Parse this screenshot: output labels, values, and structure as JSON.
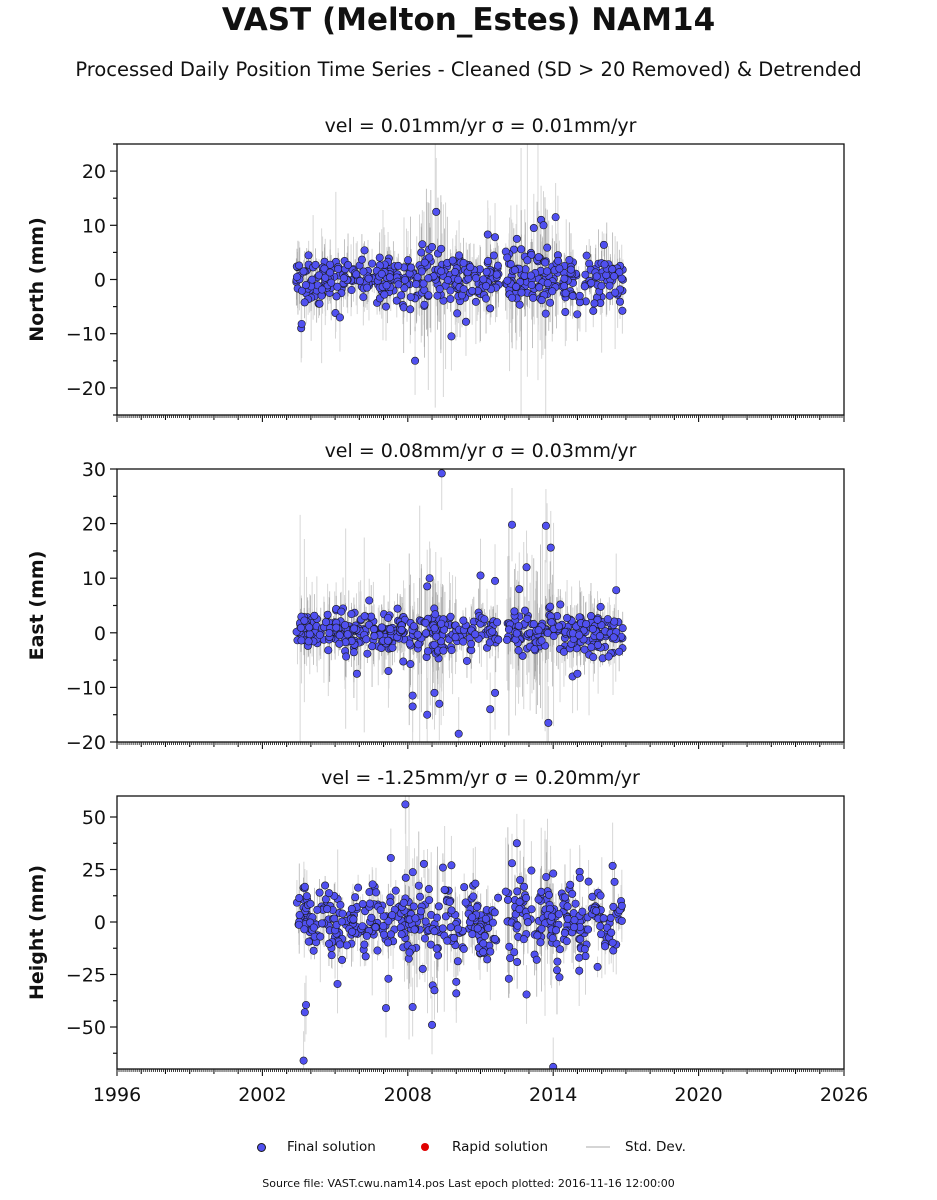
{
  "title": "VAST (Melton_Estes) NAM14",
  "subtitle": "Processed Daily Position Time Series - Cleaned (SD > 20 Removed) & Detrended",
  "legend": {
    "final": "Final solution",
    "rapid": "Rapid solution",
    "stddev": "Std. Dev."
  },
  "source": "Source file: VAST.cwu.nam14.pos  Last epoch plotted: 2016-11-16 12:00:00",
  "colors": {
    "final": "#5050f0",
    "rapid": "#e00000",
    "stddev": "#d0d0d0",
    "edge": "#1a1a1a"
  },
  "chart_data": [
    {
      "type": "scatter",
      "panel": "north",
      "title": "vel = 0.01mm/yr   σ = 0.01mm/yr",
      "ylabel": "North (mm)",
      "xlim": [
        1996,
        2026
      ],
      "ylim": [
        -25,
        25
      ],
      "yticks": [
        -20,
        -10,
        0,
        10,
        20
      ],
      "xticks": [
        1996,
        2002,
        2008,
        2014,
        2020,
        2026
      ],
      "data_span": [
        2003.4,
        2016.88
      ],
      "gap": [
        2011.75,
        2012.02
      ],
      "scatter_sd": 2.1,
      "errorbar_sd": 4.5,
      "outliers": [
        [
          2003.6,
          -9.0
        ],
        [
          2003.62,
          -8.2
        ],
        [
          2005.2,
          -7.0
        ],
        [
          2008.3,
          -15.0
        ],
        [
          2009.8,
          -10.5
        ],
        [
          2010.4,
          -7.8
        ],
        [
          2011.6,
          7.8
        ],
        [
          2011.3,
          8.3
        ],
        [
          2012.5,
          7.5
        ],
        [
          2013.2,
          9.5
        ],
        [
          2013.5,
          11.0
        ],
        [
          2014.1,
          11.5
        ],
        [
          2013.6,
          10.0
        ],
        [
          2008.6,
          6.5
        ],
        [
          2009.0,
          6.0
        ],
        [
          2014.5,
          -6.0
        ],
        [
          2008.1,
          -5.5
        ],
        [
          2007.1,
          -5.0
        ]
      ]
    },
    {
      "type": "scatter",
      "panel": "east",
      "title": "vel = 0.08mm/yr   σ = 0.03mm/yr",
      "ylabel": "East (mm)",
      "xlim": [
        1996,
        2026
      ],
      "ylim": [
        -20,
        30
      ],
      "yticks": [
        -20,
        -10,
        0,
        10,
        20,
        30
      ],
      "xticks": [
        1996,
        2002,
        2008,
        2014,
        2020,
        2026
      ],
      "data_span": [
        2003.4,
        2016.88
      ],
      "gap": [
        2011.75,
        2012.02
      ],
      "scatter_sd": 1.8,
      "errorbar_sd": 4.8,
      "outliers": [
        [
          2009.4,
          29.2
        ],
        [
          2012.3,
          19.8
        ],
        [
          2013.7,
          19.6
        ],
        [
          2013.9,
          15.6
        ],
        [
          2012.9,
          12.0
        ],
        [
          2011.0,
          10.5
        ],
        [
          2011.6,
          9.5
        ],
        [
          2008.9,
          10.0
        ],
        [
          2008.8,
          8.5
        ],
        [
          2008.2,
          -11.5
        ],
        [
          2008.2,
          -13.5
        ],
        [
          2008.8,
          -15.0
        ],
        [
          2009.3,
          -13.0
        ],
        [
          2011.4,
          -14.0
        ],
        [
          2011.6,
          -11.0
        ],
        [
          2010.1,
          -18.5
        ],
        [
          2013.8,
          -16.5
        ],
        [
          2012.6,
          8.0
        ],
        [
          2014.8,
          -8.0
        ],
        [
          2015.0,
          -7.5
        ],
        [
          2005.9,
          -7.5
        ],
        [
          2007.2,
          -7.0
        ],
        [
          2009.1,
          -11.0
        ],
        [
          2016.6,
          7.8
        ]
      ]
    },
    {
      "type": "scatter",
      "panel": "height",
      "title": "vel = -1.25mm/yr   σ = 0.20mm/yr",
      "ylabel": "Height (mm)",
      "xlim": [
        1996,
        2026
      ],
      "ylim": [
        -70,
        60
      ],
      "yticks": [
        -50,
        -25,
        0,
        25,
        50
      ],
      "xticks": [
        1996,
        2002,
        2008,
        2014,
        2020,
        2026
      ],
      "data_span": [
        2003.4,
        2016.88
      ],
      "gap": [
        2011.75,
        2012.02
      ],
      "scatter_sd": 8.0,
      "errorbar_sd": 10.0,
      "outliers": [
        [
          2007.9,
          56.0
        ],
        [
          2012.5,
          37.5
        ],
        [
          2003.7,
          -66.0
        ],
        [
          2003.75,
          -43.0
        ],
        [
          2003.8,
          -39.5
        ],
        [
          2007.1,
          -41.0
        ],
        [
          2007.2,
          -27.0
        ],
        [
          2008.2,
          -40.5
        ],
        [
          2009.0,
          -49.0
        ],
        [
          2009.1,
          -32.5
        ],
        [
          2010.0,
          -28.5
        ],
        [
          2010.0,
          -34.0
        ],
        [
          2012.9,
          -34.5
        ],
        [
          2014.0,
          -69.0
        ],
        [
          2007.3,
          30.5
        ],
        [
          2012.3,
          28.0
        ],
        [
          2005.1,
          -29.5
        ],
        [
          2009.8,
          27.0
        ],
        [
          2013.1,
          24.5
        ],
        [
          2015.1,
          21.0
        ]
      ]
    }
  ]
}
